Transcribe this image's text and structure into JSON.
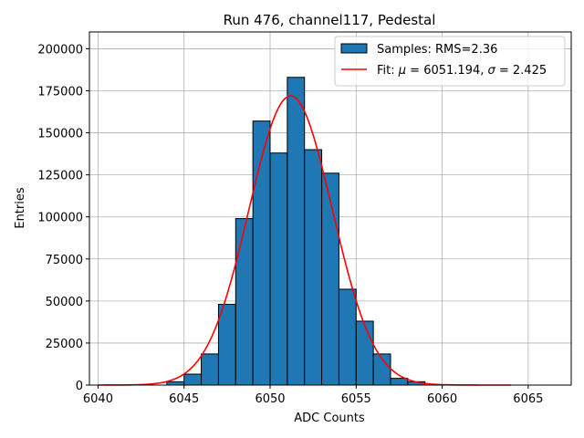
{
  "chart_data": {
    "type": "bar",
    "title": "Run 476, channel117, Pedestal",
    "xlabel": "ADC Counts",
    "ylabel": "Entries",
    "xlim": [
      6039.5,
      6067.5
    ],
    "ylim": [
      0,
      210000
    ],
    "xticks": [
      6040,
      6045,
      6050,
      6055,
      6060,
      6065
    ],
    "yticks": [
      0,
      25000,
      50000,
      75000,
      100000,
      125000,
      150000,
      175000,
      200000
    ],
    "grid": true,
    "legend_position": "top-right",
    "histogram": {
      "name": "Samples: RMS=2.36",
      "color": "#1f77b4",
      "edge_color": "#000000",
      "bins": [
        {
          "x0": 6044,
          "x1": 6045,
          "value": 2000
        },
        {
          "x0": 6045,
          "x1": 6046,
          "value": 6500
        },
        {
          "x0": 6046,
          "x1": 6047,
          "value": 18500
        },
        {
          "x0": 6047,
          "x1": 6048,
          "value": 48000
        },
        {
          "x0": 6048,
          "x1": 6049,
          "value": 99000
        },
        {
          "x0": 6049,
          "x1": 6050,
          "value": 157000
        },
        {
          "x0": 6050,
          "x1": 6051,
          "value": 138000
        },
        {
          "x0": 6051,
          "x1": 6052,
          "value": 183000
        },
        {
          "x0": 6052,
          "x1": 6053,
          "value": 140000
        },
        {
          "x0": 6053,
          "x1": 6054,
          "value": 126000
        },
        {
          "x0": 6054,
          "x1": 6055,
          "value": 57000
        },
        {
          "x0": 6055,
          "x1": 6056,
          "value": 38000
        },
        {
          "x0": 6056,
          "x1": 6057,
          "value": 18500
        },
        {
          "x0": 6057,
          "x1": 6058,
          "value": 4000
        },
        {
          "x0": 6058,
          "x1": 6059,
          "value": 2000
        }
      ]
    },
    "fit": {
      "name_parts": [
        "Fit: ",
        "μ",
        " = 6051.194, ",
        "σ",
        " = 2.425"
      ],
      "color": "#ff0000",
      "mu": 6051.194,
      "sigma": 2.425,
      "amplitude": 172000,
      "x_range": [
        6040,
        6064
      ]
    }
  }
}
